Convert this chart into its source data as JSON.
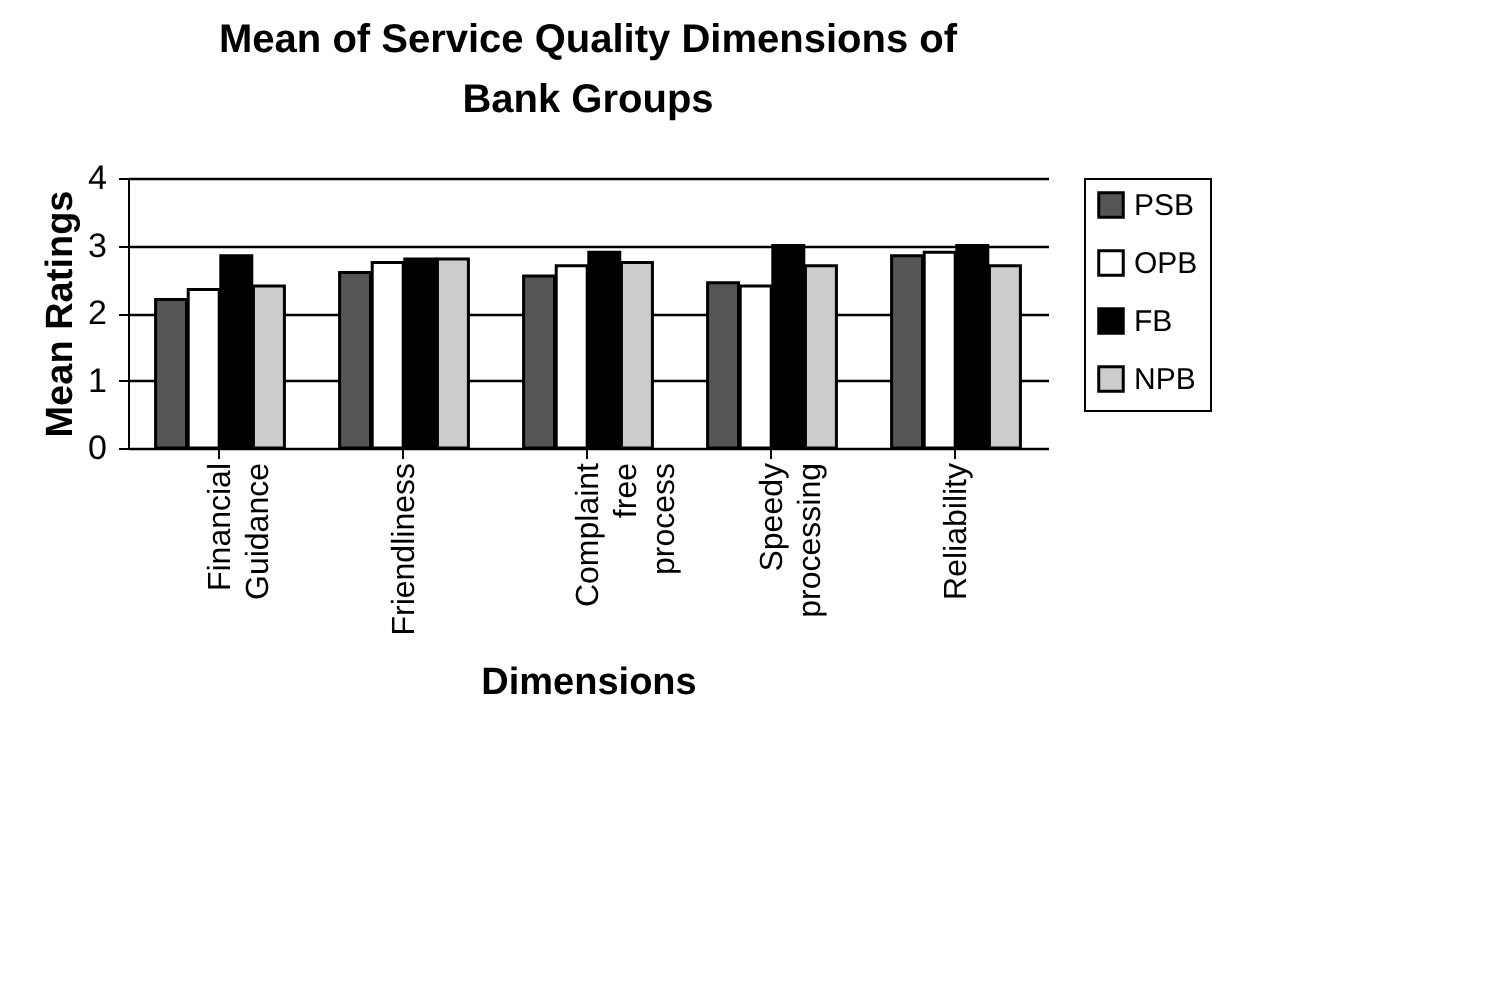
{
  "chart_data": {
    "type": "bar",
    "title": "Mean of Service Quality Dimensions of Bank Groups",
    "xlabel": "Dimensions",
    "ylabel": "Mean Ratings",
    "categories": [
      "Financial Guidance",
      "Friendliness",
      "Complaint free process",
      "Speedy processing",
      "Reliability"
    ],
    "series": [
      {
        "name": "PSB",
        "color": "#555555",
        "values": [
          2.2,
          2.6,
          2.55,
          2.45,
          2.85
        ]
      },
      {
        "name": "OPB",
        "color": "#ffffff",
        "values": [
          2.35,
          2.75,
          2.7,
          2.4,
          2.9
        ]
      },
      {
        "name": "FB",
        "color": "#000000",
        "values": [
          2.85,
          2.8,
          2.9,
          3.0,
          3.0
        ]
      },
      {
        "name": "NPB",
        "color": "#cccccc",
        "values": [
          2.4,
          2.8,
          2.75,
          2.7,
          2.7
        ]
      }
    ],
    "ylim": [
      0,
      4
    ],
    "yticks": [
      0,
      1,
      2,
      3,
      4
    ],
    "grid": "y",
    "legend": "right"
  }
}
